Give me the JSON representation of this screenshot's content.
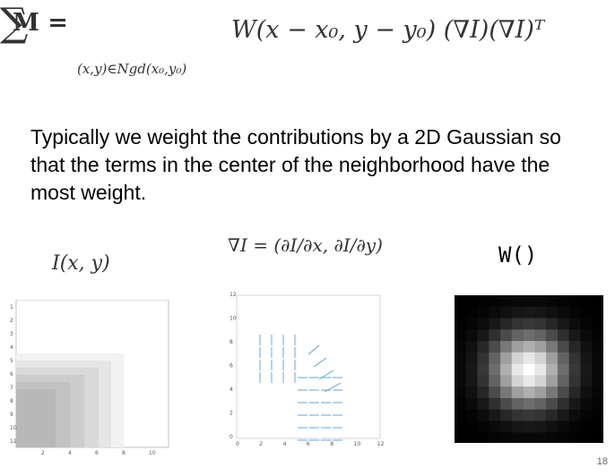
{
  "equation": {
    "lhs": "M =",
    "sum_symbol": "∑",
    "subscript": "(x,y)∈Ngd(x₀,y₀)",
    "rhs": "W(x − x₀, y − y₀) (∇I)(∇I)ᵀ"
  },
  "body_text": "Typically we weight the contributions by a 2D Gaussian so that the terms in the center of the neighborhood have the most weight.",
  "labels": {
    "image": "I(x, y)",
    "gradient": "∇I = (∂I/∂x, ∂I/∂y)",
    "window": "W()"
  },
  "plot1": {
    "y_ticks": [
      "1",
      "2",
      "3",
      "4",
      "5",
      "6",
      "7",
      "8",
      "9",
      "10",
      "11"
    ],
    "x_ticks": [
      "2",
      "4",
      "6",
      "8",
      "10"
    ]
  },
  "plot2": {
    "y_ticks": [
      "0",
      "2",
      "4",
      "6",
      "8",
      "10",
      "12"
    ],
    "x_ticks": [
      "0",
      "2",
      "4",
      "6",
      "8",
      "10",
      "12"
    ]
  },
  "page_number": "18"
}
